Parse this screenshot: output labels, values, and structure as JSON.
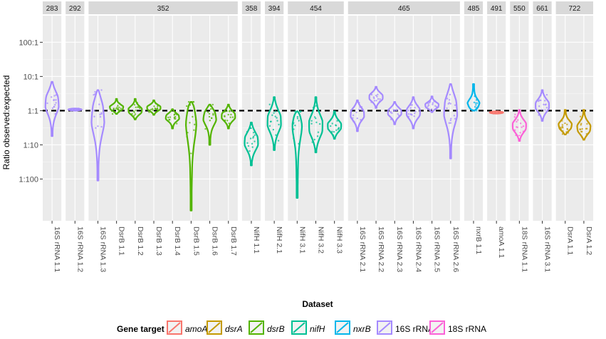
{
  "chart_data": {
    "type": "violin",
    "xlabel": "Dataset",
    "ylabel": "Ratio observed:expected",
    "y_scale": "log10",
    "ylim": [
      0.0006,
      600
    ],
    "y_ticks": [
      {
        "value": 0.01,
        "label": "1:100"
      },
      {
        "value": 0.1,
        "label": "1:10"
      },
      {
        "value": 1,
        "label": "1:1"
      },
      {
        "value": 10,
        "label": "10:1"
      },
      {
        "value": 100,
        "label": "100:1"
      }
    ],
    "reference_line": {
      "value": 1,
      "style": "dashed",
      "color": "#000000"
    },
    "legend": {
      "title": "Gene target",
      "position": "bottom",
      "entries": [
        {
          "label": "amoA",
          "italic": true,
          "color": "#F8766D"
        },
        {
          "label": "dsrA",
          "italic": true,
          "color": "#C49A00"
        },
        {
          "label": "dsrB",
          "italic": true,
          "color": "#53B400"
        },
        {
          "label": "nifH",
          "italic": true,
          "color": "#00C094"
        },
        {
          "label": "nxrB",
          "italic": true,
          "color": "#00B6EB"
        },
        {
          "label": "16S rRNA",
          "italic": false,
          "color": "#A58AFF"
        },
        {
          "label": "18S rRNA",
          "italic": false,
          "color": "#FB61D7"
        }
      ]
    },
    "panels": [
      {
        "label": "283",
        "datasets": [
          {
            "name": "16S rRNA 1.1",
            "gene": "16S rRNA",
            "min": 0.18,
            "max": 7,
            "median": 1.6,
            "dense": 1.8
          }
        ]
      },
      {
        "label": "292",
        "datasets": [
          {
            "name": "16S rRNA 1.2",
            "gene": "16S rRNA",
            "min": 1.0,
            "max": 1.15,
            "median": 1.08,
            "dense": 1.1
          }
        ]
      },
      {
        "label": "352",
        "datasets": [
          {
            "name": "16S rRNA 1.3",
            "gene": "16S rRNA",
            "min": 0.009,
            "max": 4,
            "median": 0.8,
            "dense": 0.8
          },
          {
            "name": "DsrB 1.1",
            "gene": "dsrB",
            "min": 0.8,
            "max": 2.2,
            "median": 1.2,
            "dense": 1.2
          },
          {
            "name": "DsrB 1.2",
            "gene": "dsrB",
            "min": 0.55,
            "max": 2.2,
            "median": 1.0,
            "dense": 1.0
          },
          {
            "name": "DsrB 1.3",
            "gene": "dsrB",
            "min": 0.75,
            "max": 2.0,
            "median": 1.2,
            "dense": 1.2
          },
          {
            "name": "DsrB 1.4",
            "gene": "dsrB",
            "min": 0.3,
            "max": 1.1,
            "median": 0.65,
            "dense": 0.65
          },
          {
            "name": "DsrB 1.5",
            "gene": "dsrB",
            "min": 0.0012,
            "max": 1.8,
            "median": 0.4,
            "dense": 0.9
          },
          {
            "name": "DsrB 1.6",
            "gene": "dsrB",
            "min": 0.1,
            "max": 1.5,
            "median": 0.6,
            "dense": 0.7
          },
          {
            "name": "DsrB 1.7",
            "gene": "dsrB",
            "min": 0.3,
            "max": 1.5,
            "median": 0.7,
            "dense": 0.7
          }
        ]
      },
      {
        "label": "358",
        "datasets": [
          {
            "name": "NifH 1.1",
            "gene": "nifH",
            "min": 0.025,
            "max": 0.45,
            "median": 0.12,
            "dense": 0.13
          }
        ]
      },
      {
        "label": "394",
        "datasets": [
          {
            "name": "NifH 2.1",
            "gene": "nifH",
            "min": 0.07,
            "max": 2.5,
            "median": 0.45,
            "dense": 0.5
          }
        ]
      },
      {
        "label": "454",
        "datasets": [
          {
            "name": "NifH 3.1",
            "gene": "nifH",
            "min": 0.0028,
            "max": 0.95,
            "median": 0.05,
            "dense": 0.7
          },
          {
            "name": "NifH 3.2",
            "gene": "nifH",
            "min": 0.06,
            "max": 2.5,
            "median": 0.4,
            "dense": 0.35
          },
          {
            "name": "NifH 3.3",
            "gene": "nifH",
            "min": 0.15,
            "max": 0.95,
            "median": 0.4,
            "dense": 0.35
          }
        ]
      },
      {
        "label": "465",
        "datasets": [
          {
            "name": "16S rRNA 2.1",
            "gene": "16S rRNA",
            "min": 0.25,
            "max": 2,
            "median": 0.7,
            "dense": 0.8
          },
          {
            "name": "16S rRNA 2.2",
            "gene": "16S rRNA",
            "min": 1.2,
            "max": 5,
            "median": 2.5,
            "dense": 2.5
          },
          {
            "name": "16S rRNA 2.3",
            "gene": "16S rRNA",
            "min": 0.4,
            "max": 1.8,
            "median": 0.8,
            "dense": 0.9
          },
          {
            "name": "16S rRNA 2.4",
            "gene": "16S rRNA",
            "min": 0.3,
            "max": 2.5,
            "median": 0.9,
            "dense": 0.9
          },
          {
            "name": "16S rRNA 2.5",
            "gene": "16S rRNA",
            "min": 0.9,
            "max": 2.6,
            "median": 1.4,
            "dense": 1.4
          },
          {
            "name": "16S rRNA 2.6",
            "gene": "16S rRNA",
            "min": 0.04,
            "max": 6,
            "median": 1.0,
            "dense": 1.2
          }
        ]
      },
      {
        "label": "485",
        "datasets": [
          {
            "name": "nxrB 1.1",
            "gene": "nxrB",
            "min": 1.0,
            "max": 6,
            "median": 1.6,
            "dense": 1.4
          }
        ]
      },
      {
        "label": "491",
        "datasets": [
          {
            "name": "amoA 1.1",
            "gene": "amoA",
            "min": 0.82,
            "max": 0.95,
            "median": 0.88,
            "dense": 0.88
          }
        ]
      },
      {
        "label": "550",
        "datasets": [
          {
            "name": "18S rRNA 1.1",
            "gene": "18S rRNA",
            "min": 0.13,
            "max": 1.05,
            "median": 0.4,
            "dense": 0.35
          }
        ]
      },
      {
        "label": "661",
        "datasets": [
          {
            "name": "16S rRNA 3.1",
            "gene": "16S rRNA",
            "min": 0.5,
            "max": 4,
            "median": 1.3,
            "dense": 1.4
          }
        ]
      },
      {
        "label": "722",
        "datasets": [
          {
            "name": "DsrA 1.1",
            "gene": "dsrA",
            "min": 0.2,
            "max": 1.05,
            "median": 0.45,
            "dense": 0.35
          },
          {
            "name": "DsrA 1.2",
            "gene": "dsrA",
            "min": 0.14,
            "max": 1.05,
            "median": 0.4,
            "dense": 0.3
          }
        ]
      }
    ]
  }
}
